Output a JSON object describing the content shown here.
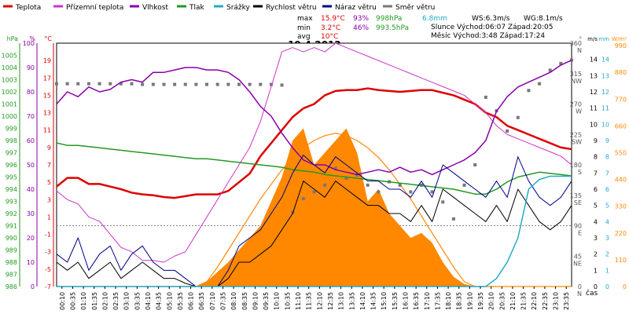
{
  "chart_data": {
    "type": "line",
    "title": "19.4.2012",
    "legend": [
      {
        "label": "Teplota",
        "color": "#dd0000"
      },
      {
        "label": "Přízemní teplota",
        "color": "#cc33cc"
      },
      {
        "label": "Vlhkost",
        "color": "#8800aa"
      },
      {
        "label": "Tlak",
        "color": "#229922"
      },
      {
        "label": "Srážky",
        "color": "#22aacc"
      },
      {
        "label": "Rychlost větru",
        "color": "#000000"
      },
      {
        "label": "Náraz větru",
        "color": "#000088"
      },
      {
        "label": "Směr větru",
        "color": "#777777"
      }
    ],
    "stats": {
      "rows": [
        {
          "label": "max",
          "temp": "15.9°C",
          "hum": "93%",
          "press": "998hPa",
          "rain": "6.8mm"
        },
        {
          "label": "min",
          "temp": "3.2°C",
          "hum": "46%",
          "press": "993.5hPa",
          "rain": ""
        },
        {
          "label": "avg",
          "temp": "10°C",
          "hum": "",
          "press": "",
          "rain": ""
        }
      ],
      "wind_speed": "WS:6.3m/s",
      "wind_gust": "WG:8.1m/s",
      "sun": "Slunce Východ:06:07  Západ:20:05",
      "moon": "Měsíc  Východ:3:48   Západ:17:24"
    },
    "axes": {
      "hpa": {
        "unit": "hPa",
        "range": [
          986,
          1006
        ],
        "ticks": [
          "1005",
          "1004",
          "1003",
          "1002",
          "1001",
          "1000",
          "999",
          "998",
          "997",
          "996",
          "995",
          "994",
          "993",
          "992",
          "991",
          "990",
          "989",
          "988",
          "987",
          "986"
        ]
      },
      "percent": {
        "unit": "%",
        "range": [
          0,
          100
        ],
        "ticks": [
          "100",
          "90",
          "80",
          "70",
          "60",
          "50",
          "40",
          "30",
          "20",
          "10",
          "0"
        ]
      },
      "celsius": {
        "unit": "°C",
        "range": [
          -7,
          21
        ],
        "ticks": [
          "19",
          "17",
          "15",
          "13",
          "11",
          "9",
          "7",
          "5",
          "3",
          "1",
          "-1",
          "-3",
          "-5",
          "-7"
        ]
      },
      "direction": {
        "unit": "°",
        "range": [
          0,
          360
        ],
        "ticks": [
          "360\nN",
          "315\nNW",
          "270\nW",
          "225\nSW",
          "180\nS",
          "135\nSE",
          "90\nE",
          "45\nNE",
          "0\nN"
        ]
      },
      "ms": {
        "unit": "m/s",
        "range": [
          0,
          15
        ],
        "ticks": [
          "14",
          "13",
          "12",
          "11",
          "10",
          "9",
          "8",
          "7",
          "6",
          "5",
          "4",
          "3",
          "2",
          "1",
          "0"
        ]
      },
      "mm": {
        "unit": "mm",
        "range": [
          0,
          15
        ],
        "ticks": [
          "14",
          "13",
          "12",
          "11",
          "10",
          "9",
          "8",
          "7",
          "6",
          "5",
          "4",
          "3",
          "2",
          "1",
          "0"
        ]
      },
      "wm2": {
        "unit": "W/m²",
        "range": [
          0,
          1000
        ],
        "ticks": [
          "990",
          "880",
          "770",
          "660",
          "550",
          "440",
          "330",
          "220",
          "110",
          "0"
        ]
      },
      "time": {
        "unit": "čas",
        "ticks": [
          "00:10",
          "00:35",
          "01:10",
          "01:35",
          "02:10",
          "02:35",
          "03:10",
          "03:35",
          "04:10",
          "04:35",
          "05:10",
          "05:35",
          "06:10",
          "06:35",
          "07:10",
          "07:35",
          "08:10",
          "08:35",
          "09:10",
          "09:35",
          "10:10",
          "10:35",
          "11:10",
          "11:35",
          "12:10",
          "12:35",
          "13:10",
          "13:35",
          "14:10",
          "14:35",
          "15:10",
          "15:35",
          "16:10",
          "16:35",
          "17:10",
          "17:35",
          "18:10",
          "18:35",
          "19:10",
          "19:35",
          "20:10",
          "20:35",
          "21:10",
          "21:35",
          "22:10",
          "22:35",
          "23:10",
          "23:35"
        ]
      }
    },
    "x_hours": [
      0,
      0.5,
      1,
      1.5,
      2,
      2.5,
      3,
      3.5,
      4,
      4.5,
      5,
      5.5,
      6,
      6.5,
      7,
      7.5,
      8,
      8.5,
      9,
      9.5,
      10,
      10.5,
      11,
      11.5,
      12,
      12.5,
      13,
      13.5,
      14,
      14.5,
      15,
      15.5,
      16,
      16.5,
      17,
      17.5,
      18,
      18.5,
      19,
      19.5,
      20,
      20.5,
      21,
      21.5,
      22,
      22.5,
      23,
      23.5,
      24
    ],
    "series": [
      {
        "name": "Teplota",
        "axis": "celsius",
        "color": "#dd0000",
        "width": 2.5,
        "values": [
          4.5,
          5.5,
          5.5,
          4.8,
          4.8,
          4.5,
          4.2,
          3.8,
          3.6,
          3.5,
          3.3,
          3.2,
          3.4,
          3.6,
          3.6,
          3.6,
          4.0,
          5.0,
          6.0,
          8.0,
          9.5,
          11.0,
          12.5,
          13.5,
          14.0,
          15.0,
          15.5,
          15.6,
          15.6,
          15.8,
          15.6,
          15.5,
          15.4,
          15.5,
          15.6,
          15.6,
          15.3,
          15.0,
          14.5,
          14.0,
          13.0,
          12.5,
          11.5,
          11.0,
          10.5,
          10.0,
          9.5,
          9.0,
          8.8
        ]
      },
      {
        "name": "Přízemní teplota",
        "axis": "celsius",
        "color": "#cc33cc",
        "width": 1,
        "values": [
          4.0,
          3.0,
          2.5,
          1.0,
          0.5,
          -1.0,
          -2.5,
          -3.0,
          -4.0,
          -4.0,
          -4.2,
          -3.5,
          -3.0,
          -1.0,
          1.0,
          3.0,
          5.0,
          7.0,
          9.0,
          12.0,
          16.0,
          20.0,
          20.5,
          20.0,
          20.5,
          20.0,
          21.0,
          20.5,
          20.0,
          19.5,
          19.0,
          18.5,
          18.0,
          17.5,
          17.0,
          16.5,
          16.0,
          15.5,
          15.0,
          14.0,
          13.0,
          11.5,
          10.5,
          10.0,
          9.5,
          9.0,
          8.5,
          8.0,
          7.0
        ]
      },
      {
        "name": "Vlhkost",
        "axis": "percent",
        "color": "#8800aa",
        "width": 1.5,
        "values": [
          75,
          80,
          78,
          82,
          80,
          81,
          84,
          85,
          84,
          88,
          88,
          89,
          90,
          90,
          89,
          89,
          88,
          85,
          80,
          74,
          70,
          63,
          57,
          52,
          50,
          50,
          48,
          47,
          46,
          47,
          48,
          47,
          49,
          47,
          48,
          46,
          48,
          50,
          52,
          55,
          60,
          72,
          78,
          82,
          84,
          86,
          88,
          91,
          93
        ]
      },
      {
        "name": "Tlak",
        "axis": "hpa",
        "color": "#229922",
        "width": 1.5,
        "values": [
          997.8,
          997.6,
          997.6,
          997.5,
          997.4,
          997.3,
          997.2,
          997.1,
          997.0,
          996.9,
          996.8,
          996.7,
          996.6,
          996.5,
          996.5,
          996.4,
          996.3,
          996.2,
          996.1,
          996.0,
          995.9,
          995.8,
          995.6,
          995.5,
          995.4,
          995.2,
          995.1,
          995.0,
          994.9,
          994.8,
          994.7,
          994.6,
          994.5,
          994.4,
          994.3,
          994.2,
          994.1,
          994.0,
          993.8,
          993.6,
          993.6,
          994.0,
          994.6,
          995.0,
          995.2,
          995.4,
          995.3,
          995.2,
          995.1
        ]
      },
      {
        "name": "Rychlost větru",
        "axis": "ms",
        "color": "#000000",
        "width": 1,
        "values": [
          1.5,
          1.0,
          1.5,
          0.5,
          1.0,
          1.5,
          0.5,
          1.0,
          1.5,
          1.0,
          0.5,
          0.5,
          0.2,
          0,
          0,
          0,
          0.5,
          1.5,
          1.5,
          2.0,
          2.5,
          3.5,
          4.5,
          6.5,
          6.0,
          5.5,
          6.5,
          6.0,
          5.5,
          5.0,
          5.0,
          4.5,
          4.5,
          4.0,
          5.0,
          4.0,
          6.0,
          5.5,
          5.0,
          4.5,
          4.0,
          5.0,
          4.0,
          6.0,
          5.0,
          4.0,
          3.5,
          4.0,
          5.0
        ]
      },
      {
        "name": "Náraz větru",
        "axis": "ms",
        "color": "#000088",
        "width": 1,
        "values": [
          2.0,
          1.5,
          3.0,
          1.0,
          2.0,
          2.5,
          1.0,
          2.0,
          2.5,
          1.5,
          1.0,
          1.0,
          0.5,
          0,
          0,
          0,
          1.0,
          2.5,
          3.0,
          3.5,
          4.5,
          5.5,
          7.0,
          8.1,
          7.5,
          7.0,
          8.0,
          7.5,
          7.0,
          6.5,
          6.5,
          6.0,
          6.0,
          5.5,
          6.5,
          5.5,
          7.5,
          7.0,
          6.5,
          6.0,
          5.5,
          6.5,
          5.5,
          8.0,
          6.5,
          5.5,
          5.0,
          5.5,
          6.5
        ]
      },
      {
        "name": "Srážky",
        "axis": "mm",
        "color": "#22aacc",
        "width": 1.5,
        "values": [
          0,
          0,
          0,
          0,
          0,
          0,
          0,
          0,
          0,
          0,
          0,
          0,
          0,
          0,
          0,
          0,
          0,
          0,
          0,
          0,
          0,
          0,
          0,
          0,
          0,
          0,
          0,
          0,
          0,
          0,
          0,
          0,
          0,
          0,
          0,
          0,
          0,
          0,
          0,
          0,
          0,
          0.5,
          1.5,
          3.0,
          6.0,
          6.6,
          6.8,
          6.8,
          6.8
        ]
      }
    ],
    "radiation": {
      "axis": "wm2",
      "color": "#ff8800",
      "values": [
        0,
        0,
        0,
        0,
        0,
        0,
        0,
        0,
        0,
        0,
        0,
        0,
        0,
        0,
        20,
        60,
        100,
        150,
        200,
        250,
        350,
        450,
        600,
        650,
        500,
        550,
        600,
        650,
        550,
        350,
        400,
        300,
        250,
        200,
        220,
        180,
        100,
        40,
        10,
        0,
        0,
        0,
        0,
        0,
        0,
        0,
        0,
        0,
        0
      ]
    },
    "clear_sky_curve": {
      "axis": "wm2",
      "color": "#ff8800",
      "values": [
        0,
        0,
        0,
        0,
        0,
        0,
        0,
        0,
        0,
        0,
        0,
        0,
        0,
        0,
        20,
        80,
        150,
        220,
        290,
        360,
        420,
        480,
        530,
        570,
        600,
        620,
        630,
        620,
        600,
        570,
        530,
        480,
        420,
        360,
        290,
        220,
        150,
        80,
        20,
        0,
        0,
        0,
        0,
        0,
        0,
        0,
        0,
        0,
        0
      ]
    },
    "wind_direction": {
      "axis": "direction",
      "color": "#777777",
      "values": [
        300,
        300,
        300,
        300,
        300,
        300,
        300,
        300,
        299,
        299,
        299,
        299,
        299,
        299,
        299,
        299,
        299,
        299,
        299,
        299,
        299,
        298,
        110,
        130,
        140,
        150,
        175,
        160,
        165,
        150,
        140,
        155,
        150,
        140,
        150,
        140,
        125,
        100,
        150,
        180,
        280,
        260,
        230,
        250,
        290,
        300,
        320,
        330,
        335
      ]
    }
  }
}
